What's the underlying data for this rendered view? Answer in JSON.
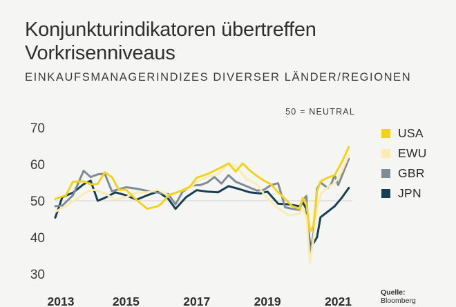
{
  "header": {
    "title": "Konjunkturindikatoren übertreffen Vorkrisenniveaus",
    "subtitle": "EINKAUFSMANAGERINDIZES DIVERSER LÄNDER/REGIONEN"
  },
  "source": {
    "label": "Quelle:",
    "name": "Bloomberg"
  },
  "chart_data": {
    "type": "line",
    "title": "",
    "xlabel": "",
    "ylabel": "",
    "annotation": "50 = NEUTRAL",
    "ylim": [
      30,
      70
    ],
    "yticks": [
      30,
      40,
      50,
      60,
      70
    ],
    "xlim": [
      2013.0,
      2021.4
    ],
    "xticks": [
      2013,
      2015,
      2017,
      2019,
      2021
    ],
    "grid": "none",
    "reference_line": 50,
    "legend_position": "right",
    "series": [
      {
        "name": "USA",
        "color": "#f3d21c",
        "x": [
          2013.0,
          2013.3,
          2013.5,
          2013.8,
          2014.0,
          2014.2,
          2014.4,
          2014.6,
          2014.8,
          2015.0,
          2015.3,
          2015.6,
          2015.9,
          2016.0,
          2016.2,
          2016.5,
          2016.8,
          2017.0,
          2017.3,
          2017.6,
          2017.9,
          2018.1,
          2018.3,
          2018.5,
          2018.7,
          2018.9,
          2019.1,
          2019.3,
          2019.5,
          2019.7,
          2019.9,
          2020.0,
          2020.1,
          2020.2,
          2020.3,
          2020.4,
          2020.5,
          2020.7,
          2020.9,
          2021.1,
          2021.3
        ],
        "values": [
          50.5,
          51.5,
          55.2,
          55.3,
          54.5,
          54.6,
          57.8,
          56.5,
          53.0,
          53.0,
          50.2,
          47.8,
          48.5,
          49.2,
          51.5,
          52.5,
          53.8,
          56.3,
          57.3,
          58.7,
          60.2,
          58.0,
          60.2,
          58.3,
          56.8,
          55.5,
          54.5,
          52.3,
          50.5,
          48.5,
          47.8,
          50.8,
          49.2,
          41.5,
          43.2,
          52.5,
          55.3,
          56.3,
          57.0,
          60.5,
          64.7
        ]
      },
      {
        "name": "EWU",
        "color": "#faecb3",
        "x": [
          2013.0,
          2013.3,
          2013.6,
          2013.9,
          2014.1,
          2014.4,
          2014.7,
          2015.0,
          2015.3,
          2015.6,
          2015.9,
          2016.2,
          2016.5,
          2016.8,
          2017.0,
          2017.3,
          2017.6,
          2017.9,
          2018.1,
          2018.4,
          2018.7,
          2019.0,
          2019.3,
          2019.6,
          2019.9,
          2020.0,
          2020.1,
          2020.2,
          2020.3,
          2020.4,
          2020.5,
          2020.7,
          2020.9,
          2021.1,
          2021.3
        ],
        "values": [
          47.0,
          48.5,
          50.5,
          52.5,
          53.0,
          52.0,
          50.3,
          51.0,
          52.2,
          52.3,
          53.0,
          51.5,
          52.5,
          53.5,
          55.2,
          56.5,
          57.3,
          60.3,
          59.5,
          56.0,
          54.5,
          50.5,
          48.0,
          46.0,
          46.5,
          48.0,
          45.5,
          33.0,
          39.5,
          47.5,
          51.8,
          53.7,
          54.8,
          58.0,
          62.5
        ]
      },
      {
        "name": "GBR",
        "color": "#7f8c96",
        "x": [
          2013.0,
          2013.2,
          2013.5,
          2013.8,
          2014.0,
          2014.2,
          2014.4,
          2014.6,
          2015.0,
          2015.3,
          2015.6,
          2015.9,
          2016.2,
          2016.4,
          2016.6,
          2016.9,
          2017.1,
          2017.3,
          2017.5,
          2017.7,
          2017.9,
          2018.1,
          2018.4,
          2018.7,
          2018.9,
          2019.1,
          2019.3,
          2019.5,
          2019.7,
          2019.9,
          2020.0,
          2020.1,
          2020.2,
          2020.3,
          2020.4,
          2020.5,
          2020.7,
          2020.8,
          2020.9,
          2021.0,
          2021.3
        ],
        "values": [
          48.5,
          48.7,
          51.5,
          58.2,
          56.5,
          57.2,
          57.4,
          52.6,
          53.7,
          53.3,
          52.7,
          52.2,
          51.8,
          49.0,
          52.5,
          54.2,
          54.3,
          55.0,
          56.5,
          54.7,
          57.0,
          55.2,
          54.0,
          52.8,
          53.0,
          54.3,
          54.8,
          48.2,
          47.8,
          47.5,
          50.2,
          51.3,
          35.0,
          41.0,
          53.2,
          55.0,
          53.5,
          54.5,
          57.0,
          54.3,
          61.5
        ]
      },
      {
        "name": "JPN",
        "color": "#163f52",
        "x": [
          2013.0,
          2013.2,
          2013.5,
          2013.8,
          2014.0,
          2014.2,
          2014.4,
          2014.7,
          2015.0,
          2015.3,
          2015.6,
          2015.9,
          2016.2,
          2016.4,
          2016.7,
          2017.0,
          2017.3,
          2017.6,
          2017.9,
          2018.2,
          2018.5,
          2018.8,
          2019.0,
          2019.3,
          2019.6,
          2019.9,
          2020.0,
          2020.1,
          2020.2,
          2020.3,
          2020.4,
          2020.5,
          2020.7,
          2020.9,
          2021.1,
          2021.3
        ],
        "values": [
          45.4,
          51.0,
          52.2,
          54.5,
          55.5,
          50.0,
          50.8,
          52.3,
          51.5,
          50.3,
          51.5,
          52.5,
          50.5,
          47.8,
          51.0,
          52.9,
          52.5,
          52.3,
          54.0,
          53.2,
          52.3,
          52.0,
          52.5,
          49.2,
          49.0,
          48.5,
          49.5,
          47.8,
          38.0,
          38.4,
          40.0,
          45.5,
          47.0,
          48.5,
          50.8,
          53.5
        ]
      }
    ]
  }
}
